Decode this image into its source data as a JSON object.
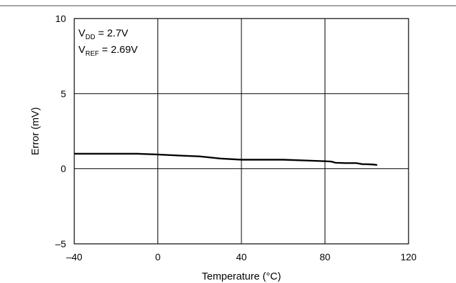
{
  "chart_data": {
    "type": "line",
    "xlabel": "Temperature (°C)",
    "ylabel": "Error (mV)",
    "xlim": [
      -40,
      120
    ],
    "ylim": [
      -5,
      10
    ],
    "x_ticks": [
      -40,
      0,
      40,
      80,
      120
    ],
    "y_ticks": [
      -5,
      0,
      5,
      10
    ],
    "x_tick_labels": [
      "–40",
      "0",
      "40",
      "80",
      "120"
    ],
    "y_tick_labels": [
      "–5",
      "0",
      "5",
      "10"
    ],
    "grid": true,
    "annotations": [
      {
        "main": "V",
        "sub": "DD",
        "rest": " = 2.7V"
      },
      {
        "main": "V",
        "sub": "REF",
        "rest": " = 2.69V"
      }
    ],
    "series": [
      {
        "x": [
          -40,
          -30,
          -20,
          -10,
          0,
          10,
          20,
          30,
          40,
          50,
          60,
          70,
          80,
          83,
          85,
          90,
          95,
          98,
          100,
          103,
          105
        ],
        "y": [
          1.0,
          1.0,
          1.0,
          1.0,
          0.95,
          0.88,
          0.82,
          0.68,
          0.6,
          0.6,
          0.6,
          0.55,
          0.5,
          0.48,
          0.4,
          0.38,
          0.38,
          0.3,
          0.3,
          0.28,
          0.25
        ]
      }
    ]
  }
}
